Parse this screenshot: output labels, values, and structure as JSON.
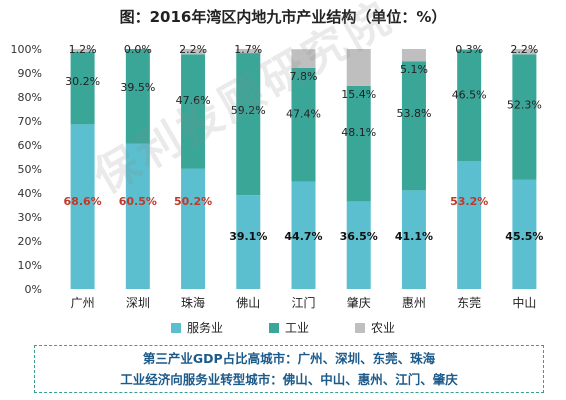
{
  "chart_data": {
    "type": "bar",
    "stacked": true,
    "title": "图：2016年湾区内地九市产业结构（单位：%）",
    "categories": [
      "广州",
      "深圳",
      "珠海",
      "佛山",
      "江门",
      "肇庆",
      "惠州",
      "东莞",
      "中山"
    ],
    "series": [
      {
        "name": "服务业",
        "color": "#5bbfcf",
        "values": [
          68.6,
          60.5,
          50.2,
          39.1,
          44.7,
          36.5,
          41.1,
          53.2,
          45.5
        ]
      },
      {
        "name": "工业",
        "color": "#3aa698",
        "values": [
          30.2,
          39.5,
          47.6,
          59.2,
          47.4,
          48.1,
          53.8,
          46.5,
          52.3
        ]
      },
      {
        "name": "农业",
        "color": "#bfbfbf",
        "values": [
          1.2,
          0.0,
          2.2,
          1.7,
          7.8,
          15.4,
          5.1,
          0.3,
          2.2
        ]
      }
    ],
    "value_labels": {
      "服务业": [
        "68.6%",
        "60.5%",
        "50.2%",
        "39.1%",
        "44.7%",
        "36.5%",
        "41.1%",
        "53.2%",
        "45.5%"
      ],
      "工业": [
        "30.2%",
        "39.5%",
        "47.6%",
        "59.2%",
        "47.4%",
        "48.1%",
        "53.8%",
        "46.5%",
        "52.3%"
      ],
      "农业": [
        "1.2%",
        "0.0%",
        "2.2%",
        "1.7%",
        "7.8%",
        "15.4%",
        "5.1%",
        "0.3%",
        "2.2%"
      ]
    },
    "highlight_categories": [
      "广州",
      "深圳",
      "珠海",
      "东莞"
    ],
    "highlight_color": "#c0392b",
    "ylim": [
      0,
      100
    ],
    "yticks": [
      "0%",
      "10%",
      "20%",
      "30%",
      "40%",
      "50%",
      "60%",
      "70%",
      "80%",
      "90%",
      "100%"
    ],
    "legend_position": "bottom",
    "grid": false
  },
  "watermark": "保利投顾研究院",
  "note": {
    "line1": "第三产业GDP占比高城市：广州、深圳、东莞、珠海",
    "line2": "工业经济向服务业转型城市：佛山、中山、惠州、江门、肇庆"
  }
}
